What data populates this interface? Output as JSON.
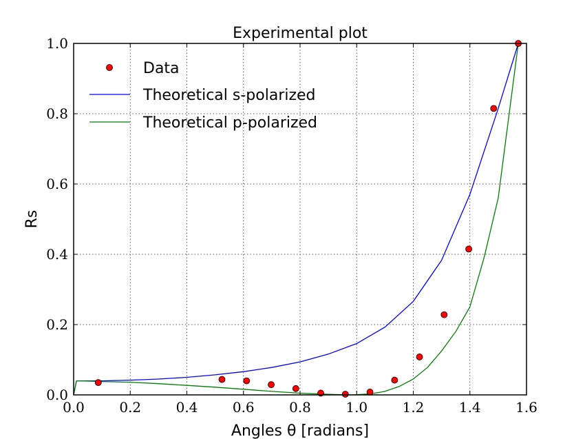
{
  "chart_data": {
    "type": "line",
    "title": "Experimental plot",
    "xlabel": "Angles θ [radians]",
    "ylabel": "Rs",
    "xlim": [
      0.0,
      1.6
    ],
    "ylim": [
      0.0,
      1.0
    ],
    "xticks": [
      "0.0",
      "0.2",
      "0.4",
      "0.6",
      "0.8",
      "1.0",
      "1.2",
      "1.4",
      "1.6"
    ],
    "yticks": [
      "0.0",
      "0.2",
      "0.4",
      "0.6",
      "0.8",
      "1.0"
    ],
    "grid": true,
    "legend_position": "top-left",
    "series": [
      {
        "name": "Data",
        "kind": "scatter",
        "color": "#ff0000",
        "x": [
          0.087,
          0.524,
          0.611,
          0.698,
          0.785,
          0.873,
          0.96,
          1.047,
          1.134,
          1.222,
          1.309,
          1.396,
          1.484,
          1.571
        ],
        "y": [
          0.035,
          0.044,
          0.04,
          0.029,
          0.018,
          0.005,
          0.002,
          0.008,
          0.042,
          0.108,
          0.228,
          0.415,
          0.815,
          1.0
        ]
      },
      {
        "name": "Theoretical s-polarized",
        "kind": "line",
        "color": "#0000ff",
        "x": [
          0.0,
          0.01,
          0.02,
          0.1,
          0.2,
          0.3,
          0.4,
          0.5,
          0.6,
          0.7,
          0.8,
          0.9,
          1.0,
          1.1,
          1.2,
          1.3,
          1.4,
          1.5,
          1.571
        ],
        "y": [
          0.0,
          0.04,
          0.04,
          0.04,
          0.042,
          0.045,
          0.05,
          0.057,
          0.066,
          0.078,
          0.094,
          0.116,
          0.146,
          0.193,
          0.266,
          0.383,
          0.57,
          0.815,
          1.0
        ]
      },
      {
        "name": "Theoretical p-polarized",
        "kind": "line",
        "color": "#007f00",
        "x": [
          0.0,
          0.01,
          0.02,
          0.1,
          0.2,
          0.3,
          0.4,
          0.5,
          0.6,
          0.7,
          0.8,
          0.9,
          0.98,
          1.0,
          1.05,
          1.1,
          1.15,
          1.2,
          1.25,
          1.3,
          1.35,
          1.4,
          1.45,
          1.5,
          1.571
        ],
        "y": [
          0.0,
          0.04,
          0.04,
          0.038,
          0.036,
          0.032,
          0.027,
          0.022,
          0.016,
          0.01,
          0.005,
          0.0015,
          0.0,
          0.0005,
          0.003,
          0.01,
          0.024,
          0.045,
          0.078,
          0.125,
          0.18,
          0.25,
          0.39,
          0.56,
          1.0
        ]
      }
    ]
  }
}
